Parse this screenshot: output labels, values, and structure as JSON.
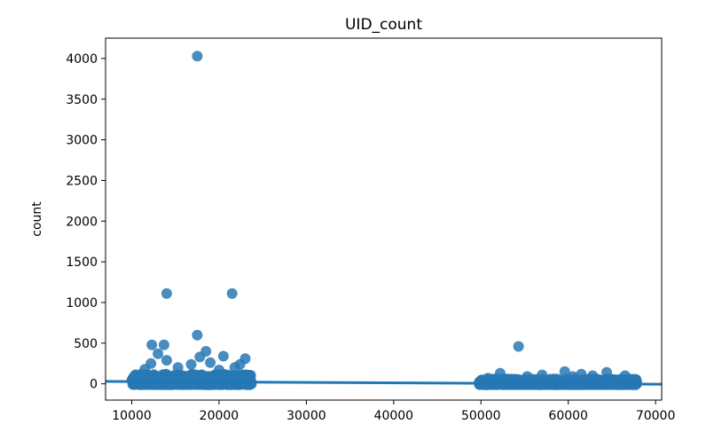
{
  "chart_data": {
    "type": "scatter",
    "title": "UID_count",
    "xlabel": "",
    "ylabel": "count",
    "xlim": [
      7000,
      70700
    ],
    "ylim": [
      -200,
      4250
    ],
    "xticks": [
      10000,
      20000,
      30000,
      40000,
      50000,
      60000,
      70000
    ],
    "xtick_labels": [
      "10000",
      "20000",
      "30000",
      "40000",
      "50000",
      "60000",
      "70000"
    ],
    "yticks": [
      0,
      500,
      1000,
      1500,
      2000,
      2500,
      3000,
      3500,
      4000
    ],
    "ytick_labels": [
      "0",
      "500",
      "1000",
      "1500",
      "2000",
      "2500",
      "3000",
      "3500",
      "4000"
    ],
    "grid": false,
    "point_color": "#2878b5",
    "regression_line": {
      "x": [
        7000,
        70700
      ],
      "y": [
        30,
        -5
      ],
      "color": "#1f77b4"
    },
    "clusters": [
      {
        "x_range": [
          10000,
          23700
        ],
        "y_range": [
          -10,
          120
        ]
      },
      {
        "x_range": [
          49800,
          67800
        ],
        "y_range": [
          -10,
          60
        ]
      }
    ],
    "points": [
      [
        17500,
        4030
      ],
      [
        14000,
        1110
      ],
      [
        21500,
        1110
      ],
      [
        17500,
        600
      ],
      [
        12300,
        480
      ],
      [
        13700,
        480
      ],
      [
        18500,
        400
      ],
      [
        13000,
        370
      ],
      [
        17800,
        330
      ],
      [
        20500,
        340
      ],
      [
        23000,
        310
      ],
      [
        14000,
        290
      ],
      [
        19000,
        260
      ],
      [
        12200,
        250
      ],
      [
        22400,
        240
      ],
      [
        16800,
        240
      ],
      [
        15300,
        200
      ],
      [
        11500,
        180
      ],
      [
        21800,
        200
      ],
      [
        20000,
        170
      ],
      [
        54300,
        460
      ],
      [
        52200,
        130
      ],
      [
        59600,
        150
      ],
      [
        61500,
        120
      ],
      [
        64400,
        140
      ],
      [
        57000,
        110
      ],
      [
        66500,
        100
      ],
      [
        55300,
        90
      ],
      [
        62800,
        100
      ],
      [
        60500,
        90
      ],
      [
        50800,
        70
      ]
    ]
  }
}
